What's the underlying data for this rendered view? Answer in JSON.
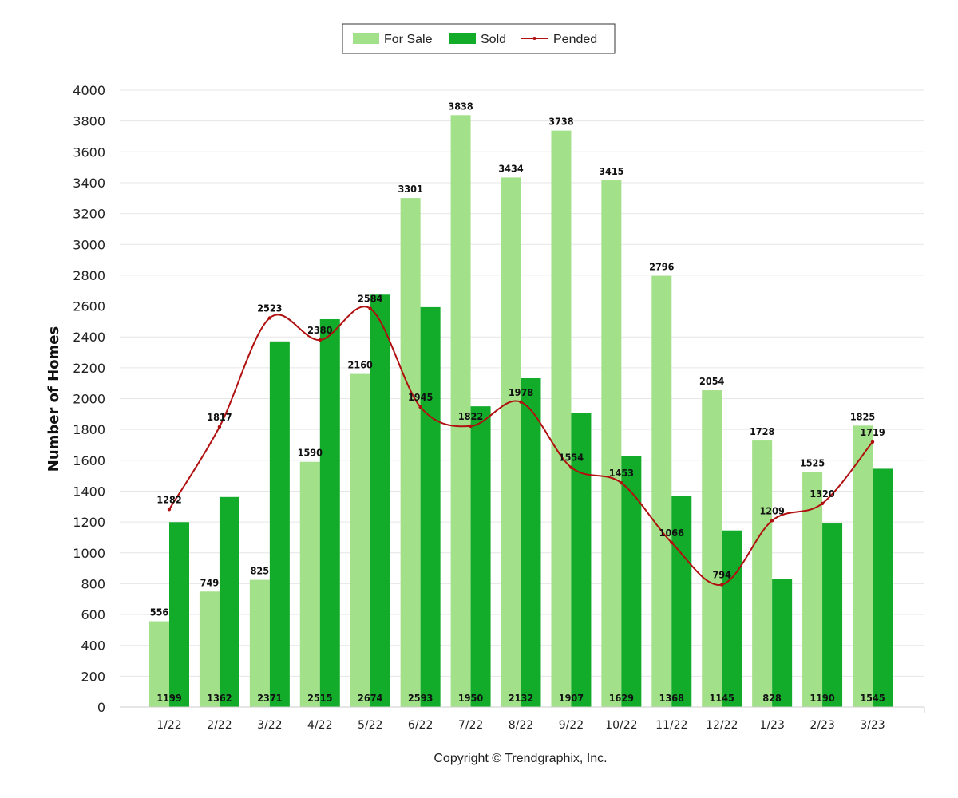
{
  "chart_data": {
    "type": "bar",
    "ylabel": "Number of Homes",
    "ylim": [
      0,
      4000
    ],
    "ytick_step": 200,
    "categories": [
      "1/22",
      "2/22",
      "3/22",
      "4/22",
      "5/22",
      "6/22",
      "7/22",
      "8/22",
      "9/22",
      "10/22",
      "11/22",
      "12/22",
      "1/23",
      "2/23",
      "3/23"
    ],
    "series": [
      {
        "name": "For Sale",
        "kind": "bar",
        "color": "#a3e08a",
        "values": [
          556,
          749,
          825,
          1590,
          2160,
          3301,
          3838,
          3434,
          3738,
          3415,
          2796,
          2054,
          1728,
          1525,
          1825
        ]
      },
      {
        "name": "Sold",
        "kind": "bar",
        "color": "#12ab2a",
        "values": [
          1199,
          1362,
          2371,
          2515,
          2674,
          2593,
          1950,
          2132,
          1907,
          1629,
          1368,
          1145,
          828,
          1190,
          1545
        ]
      },
      {
        "name": "Pended",
        "kind": "line",
        "color": "#b01010",
        "values": [
          1282,
          1817,
          2523,
          2380,
          2584,
          1945,
          1822,
          1978,
          1554,
          1453,
          1066,
          794,
          1209,
          1320,
          1719
        ]
      }
    ],
    "legend_position": "top-center",
    "grid": true
  },
  "footer": {
    "copyright": "Copyright © Trendgraphix, Inc."
  }
}
